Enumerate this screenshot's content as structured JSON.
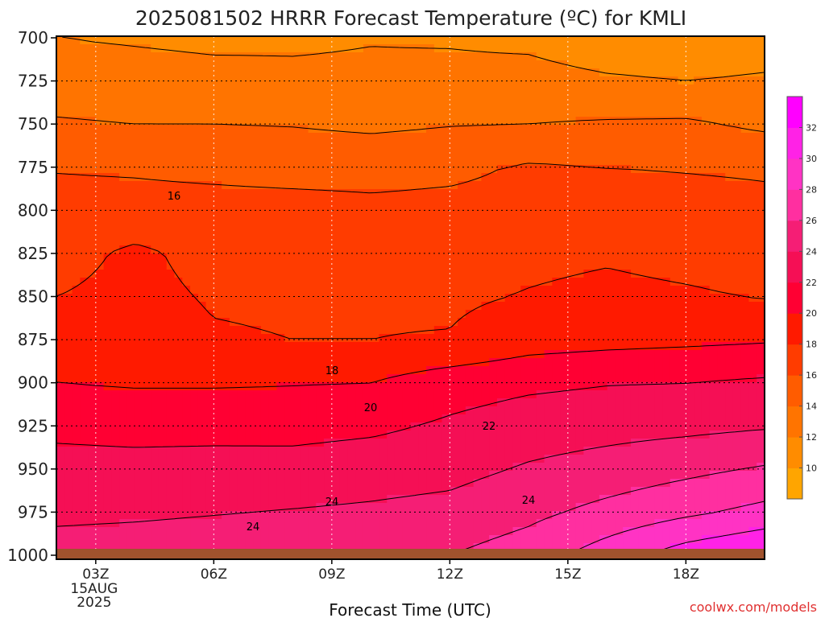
{
  "chart_data": {
    "type": "heatmap",
    "title": "2025081502 HRRR Forecast Temperature (ºC) for KMLI",
    "xlabel": "Forecast Time (UTC)",
    "ylabel": "",
    "y_axis": {
      "ticks": [
        700,
        725,
        750,
        775,
        800,
        825,
        850,
        875,
        900,
        925,
        950,
        975,
        1000
      ],
      "range": [
        700,
        1000
      ],
      "inverted": true
    },
    "x_axis": {
      "ticks": [
        {
          "hour": 3,
          "label": "03Z",
          "sublabels": [
            "15AUG",
            "2025"
          ]
        },
        {
          "hour": 6,
          "label": "06Z",
          "sublabels": []
        },
        {
          "hour": 9,
          "label": "09Z",
          "sublabels": []
        },
        {
          "hour": 12,
          "label": "12Z",
          "sublabels": []
        },
        {
          "hour": 15,
          "label": "15Z",
          "sublabels": []
        },
        {
          "hour": 18,
          "label": "18Z",
          "sublabels": []
        }
      ],
      "range_hours": [
        2,
        20
      ]
    },
    "grid": true,
    "colorbar": {
      "labels": [
        "10",
        "12",
        "14",
        "16",
        "18",
        "20",
        "22",
        "24",
        "26",
        "28",
        "30",
        "32"
      ],
      "colors": [
        "#ffa500",
        "#ff8c00",
        "#ff7400",
        "#ff5c00",
        "#ff3c00",
        "#ff1a00",
        "#ff0033",
        "#f50f55",
        "#f51e75",
        "#ff2fa0",
        "#ff33c4",
        "#ff22e6",
        "#ff00ff"
      ]
    },
    "isotherm_labels": [
      "16",
      "18",
      "20",
      "22",
      "24",
      "24",
      "24"
    ],
    "field_temperature_degC": {
      "hours": [
        2,
        4,
        6,
        8,
        10,
        12,
        14,
        16,
        18,
        20
      ],
      "levels": [
        700,
        725,
        750,
        775,
        800,
        825,
        850,
        875,
        900,
        925,
        950,
        975,
        1000
      ],
      "values": [
        [
          12.0,
          11.8,
          11.6,
          11.7,
          11.9,
          11.8,
          11.5,
          10.6,
          10.4,
          10.8
        ],
        [
          13.0,
          12.8,
          12.6,
          12.4,
          12.4,
          12.6,
          12.8,
          12.3,
          12.0,
          12.3
        ],
        [
          14.2,
          14.0,
          14.0,
          13.9,
          13.6,
          13.9,
          14.0,
          14.2,
          14.3,
          13.6
        ],
        [
          15.9,
          15.8,
          15.6,
          15.4,
          15.4,
          15.6,
          16.2,
          16.0,
          15.9,
          15.8
        ],
        [
          16.6,
          16.6,
          16.6,
          16.6,
          16.4,
          16.5,
          16.6,
          16.7,
          16.6,
          16.4
        ],
        [
          17.2,
          18.4,
          17.3,
          17.3,
          17.3,
          17.4,
          17.6,
          17.8,
          17.5,
          17.3
        ],
        [
          18.0,
          18.6,
          17.8,
          17.7,
          17.8,
          17.7,
          18.1,
          18.4,
          18.2,
          17.9
        ],
        [
          19.0,
          19.0,
          18.2,
          18.0,
          18.0,
          18.1,
          19.1,
          19.4,
          19.6,
          19.8
        ],
        [
          20.0,
          19.8,
          19.8,
          19.9,
          20.0,
          21.1,
          21.6,
          21.9,
          22.0,
          22.3
        ],
        [
          21.6,
          21.4,
          21.4,
          21.3,
          21.6,
          22.3,
          23.0,
          23.3,
          23.5,
          23.8
        ],
        [
          22.6,
          22.6,
          22.7,
          22.8,
          23.1,
          23.4,
          24.2,
          24.8,
          25.5,
          26.2
        ],
        [
          23.6,
          23.7,
          23.9,
          24.1,
          24.3,
          24.6,
          25.5,
          26.6,
          27.6,
          28.6
        ],
        [
          24.8,
          25.0,
          25.2,
          25.3,
          25.6,
          26.0,
          27.0,
          29.0,
          31.0,
          32.2
        ]
      ]
    }
  },
  "footer": {
    "site_credit": "coolwx.com/models"
  }
}
